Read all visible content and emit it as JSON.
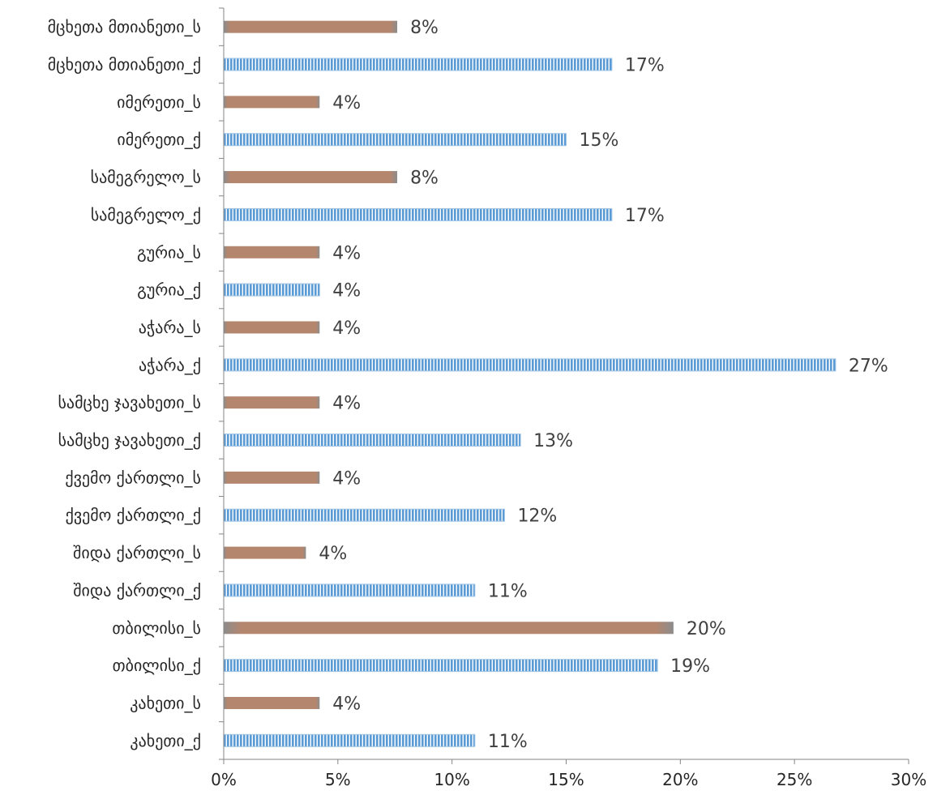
{
  "chart_data": {
    "type": "bar",
    "orientation": "horizontal",
    "categories": [
      "კახეთი_ქ",
      "კახეთი_ს",
      "თბილისი_ქ",
      "თბილისი_ს",
      "შიდა ქართლი_ქ",
      "შიდა ქართლი_ს",
      "ქვემო ქართლი_ქ",
      "ქვემო ქართლი_ს",
      "სამცხე ჯავახეთი_ქ",
      "სამცხე ჯავახეთი_ს",
      "აჭარა_ქ",
      "აჭარა_ს",
      "გურია_ქ",
      "გურია_ს",
      "სამეგრელო_ქ",
      "სამეგრელო_ს",
      "იმერეთი_ქ",
      "იმერეთი_ს",
      "მცხეთა მთიანეთი_ქ",
      "მცხეთა მთიანეთი_ს"
    ],
    "values": [
      11,
      4.2,
      19,
      19.7,
      11,
      3.6,
      12.3,
      4.2,
      13,
      4.2,
      26.8,
      4.2,
      4.2,
      4.2,
      17,
      7.6,
      15,
      4.2,
      17,
      7.6
    ],
    "data_labels": [
      "11%",
      "4%",
      "19%",
      "20%",
      "11%",
      "4%",
      "12%",
      "4%",
      "13%",
      "4%",
      "27%",
      "4%",
      "4%",
      "4%",
      "17%",
      "8%",
      "15%",
      "4%",
      "17%",
      "8%"
    ],
    "xlim": [
      0,
      30
    ],
    "x_ticks": [
      "0%",
      "5%",
      "10%",
      "15%",
      "20%",
      "25%",
      "30%"
    ],
    "title": "",
    "xlabel": "",
    "ylabel": "",
    "grid": false,
    "legend": "none",
    "colors": {
      "_ქ": "#5b9bd5",
      "_ს": "#b5866e"
    }
  }
}
